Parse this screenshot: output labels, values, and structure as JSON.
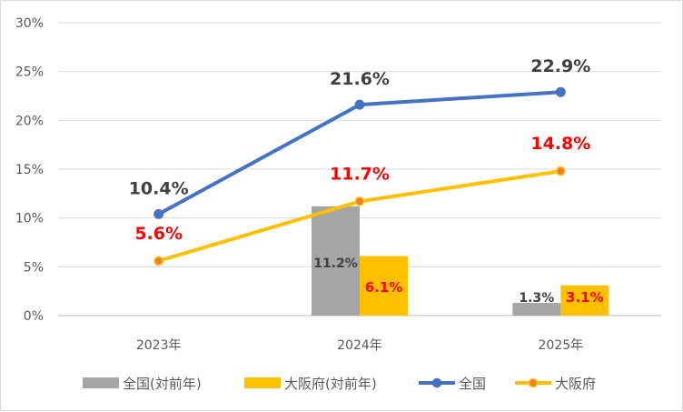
{
  "chart_data": {
    "type": "bar+line",
    "categories": [
      "2023年",
      "2024年",
      "2025年"
    ],
    "y_ticks": [
      "0%",
      "5%",
      "10%",
      "15%",
      "20%",
      "25%",
      "30%"
    ],
    "ylim": [
      0,
      30
    ],
    "grid": true,
    "legend_position": "bottom",
    "series": [
      {
        "name": "全国(対前年)",
        "kind": "bar",
        "color": "#a5a5a5",
        "values": [
          null,
          11.2,
          1.3
        ],
        "labels": [
          "",
          "11.2%",
          "1.3%"
        ],
        "label_color": "#404040"
      },
      {
        "name": "大阪府(対前年)",
        "kind": "bar",
        "color": "#ffc000",
        "values": [
          null,
          6.1,
          3.1
        ],
        "labels": [
          "",
          "6.1%",
          "3.1%"
        ],
        "label_color": "#ff0000"
      },
      {
        "name": "全国",
        "kind": "line",
        "color": "#4472c4",
        "values": [
          10.4,
          21.6,
          22.9
        ],
        "labels": [
          "10.4%",
          "21.6%",
          "22.9%"
        ],
        "label_color": "#404040"
      },
      {
        "name": "大阪府",
        "kind": "line",
        "color": "#ffc000",
        "marker_fill": "#ed7d31",
        "values": [
          5.6,
          11.7,
          14.8
        ],
        "labels": [
          "5.6%",
          "11.7%",
          "14.8%"
        ],
        "label_color": "#ff0000"
      }
    ]
  }
}
